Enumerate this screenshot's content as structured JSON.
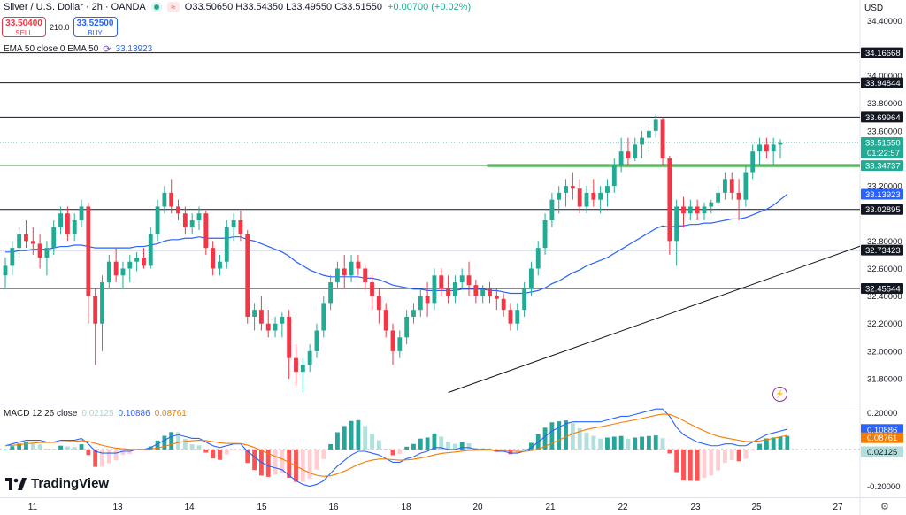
{
  "header": {
    "symbol": "Silver / U.S. Dollar · 2h · OANDA",
    "ohlc": "O33.50650 H33.54350 L33.49550 C33.51550",
    "change": "+0.00700 (+0.02%)",
    "sell_price": "33.50400",
    "sell_label": "SELL",
    "buy_price": "33.52500",
    "buy_label": "BUY",
    "spread": "210.0",
    "ema_label": "EMA 50 close 0 EMA 50",
    "ema_value": "33.13923",
    "macd_label": "MACD 12 26 close",
    "macd_hist": "0.02125",
    "macd_line": "0.10886",
    "macd_signal": "0.08761",
    "currency": "USD",
    "logo": "TradingView",
    "colors": {
      "up": "#22ab94",
      "down": "#f23645",
      "ema": "#2962ff",
      "signal": "#f57c00",
      "hist_up": "#26a69a",
      "hist_up_light": "#b2dfdb",
      "hist_down": "#ff5252",
      "hist_down_light": "#ffcdd2",
      "zone": "#4caf50"
    }
  },
  "chart_data": [
    {
      "type": "candlestick",
      "x_tick_labels": [
        "11",
        "13",
        "14",
        "15",
        "16",
        "18",
        "20",
        "21",
        "22",
        "23",
        "25",
        "27"
      ],
      "y_tick_labels": [
        "34.40000",
        "34.00000",
        "33.80000",
        "33.60000",
        "33.20000",
        "32.80000",
        "32.60000",
        "32.40000",
        "32.20000",
        "32.00000",
        "31.80000"
      ],
      "ylim": [
        31.62,
        34.55
      ],
      "price_badges": [
        {
          "label": "34.16668",
          "value": 34.16668,
          "style": "dark"
        },
        {
          "label": "33.94844",
          "value": 33.94844,
          "style": "dark"
        },
        {
          "label": "33.69964",
          "value": 33.69964,
          "style": "dark"
        },
        {
          "label": "33.51550",
          "value": 33.5155,
          "style": "green",
          "sub": "01:22:57"
        },
        {
          "label": "33.34737",
          "value": 33.34737,
          "style": "green"
        },
        {
          "label": "33.13923",
          "value": 33.13923,
          "style": "blue"
        },
        {
          "label": "33.02895",
          "value": 33.02895,
          "style": "dark"
        },
        {
          "label": "32.73423",
          "value": 32.73423,
          "style": "dark"
        },
        {
          "label": "32.45544",
          "value": 32.45544,
          "style": "dark"
        }
      ],
      "horizontal_levels": [
        34.16668,
        33.94844,
        33.69964,
        33.02895,
        32.73423,
        32.45544
      ],
      "support_zone": {
        "value": 33.34737,
        "from_bar": 70
      },
      "current_price": 33.5155,
      "trendline": {
        "from": [
          64,
          31.7
        ],
        "to": [
          157,
          33.36
        ]
      },
      "ohlc": [
        [
          32.55,
          32.68,
          32.45,
          32.62
        ],
        [
          32.62,
          32.8,
          32.55,
          32.75
        ],
        [
          32.75,
          32.9,
          32.68,
          32.85
        ],
        [
          32.85,
          32.95,
          32.75,
          32.8
        ],
        [
          32.8,
          32.9,
          32.7,
          32.78
        ],
        [
          32.78,
          32.85,
          32.6,
          32.68
        ],
        [
          32.68,
          32.8,
          32.55,
          32.75
        ],
        [
          32.75,
          32.95,
          32.7,
          32.9
        ],
        [
          32.9,
          33.05,
          32.85,
          33.0
        ],
        [
          33.0,
          33.05,
          32.8,
          32.85
        ],
        [
          32.85,
          33.0,
          32.8,
          32.95
        ],
        [
          32.95,
          33.1,
          32.9,
          33.05
        ],
        [
          33.05,
          33.08,
          32.2,
          32.4
        ],
        [
          32.4,
          32.45,
          31.9,
          32.2
        ],
        [
          32.2,
          32.55,
          32.0,
          32.5
        ],
        [
          32.5,
          32.7,
          32.45,
          32.65
        ],
        [
          32.65,
          32.75,
          32.5,
          32.55
        ],
        [
          32.55,
          32.65,
          32.45,
          32.6
        ],
        [
          32.6,
          32.7,
          32.5,
          32.65
        ],
        [
          32.65,
          32.72,
          32.58,
          32.68
        ],
        [
          32.68,
          32.75,
          32.6,
          32.62
        ],
        [
          32.62,
          32.9,
          32.6,
          32.85
        ],
        [
          32.85,
          33.1,
          32.8,
          33.05
        ],
        [
          33.05,
          33.2,
          33.0,
          33.15
        ],
        [
          33.15,
          33.25,
          33.0,
          33.05
        ],
        [
          33.05,
          33.1,
          32.95,
          33.0
        ],
        [
          33.0,
          33.05,
          32.85,
          32.9
        ],
        [
          32.9,
          33.0,
          32.85,
          32.95
        ],
        [
          32.95,
          33.05,
          32.88,
          33.0
        ],
        [
          33.0,
          33.02,
          32.7,
          32.75
        ],
        [
          32.75,
          32.8,
          32.55,
          32.6
        ],
        [
          32.6,
          32.7,
          32.55,
          32.65
        ],
        [
          32.65,
          32.95,
          32.6,
          32.9
        ],
        [
          32.9,
          33.0,
          32.8,
          32.95
        ],
        [
          32.95,
          33.02,
          32.8,
          32.85
        ],
        [
          32.85,
          32.88,
          32.2,
          32.25
        ],
        [
          32.25,
          32.35,
          32.15,
          32.3
        ],
        [
          32.3,
          32.4,
          32.15,
          32.2
        ],
        [
          32.2,
          32.3,
          32.1,
          32.15
        ],
        [
          32.15,
          32.25,
          32.1,
          32.2
        ],
        [
          32.2,
          32.28,
          32.1,
          32.25
        ],
        [
          32.25,
          32.3,
          31.8,
          31.95
        ],
        [
          31.95,
          32.05,
          31.75,
          31.85
        ],
        [
          31.85,
          31.95,
          31.7,
          31.9
        ],
        [
          31.9,
          32.05,
          31.85,
          32.0
        ],
        [
          32.0,
          32.2,
          31.95,
          32.15
        ],
        [
          32.15,
          32.4,
          32.1,
          32.35
        ],
        [
          32.35,
          32.55,
          32.3,
          32.5
        ],
        [
          32.5,
          32.65,
          32.45,
          32.6
        ],
        [
          32.6,
          32.7,
          32.45,
          32.55
        ],
        [
          32.55,
          32.7,
          32.5,
          32.65
        ],
        [
          32.65,
          32.7,
          32.55,
          32.6
        ],
        [
          32.6,
          32.62,
          32.45,
          32.5
        ],
        [
          32.5,
          32.55,
          32.3,
          32.4
        ],
        [
          32.4,
          32.45,
          32.2,
          32.3
        ],
        [
          32.3,
          32.35,
          32.1,
          32.15
        ],
        [
          32.15,
          32.2,
          31.9,
          32.0
        ],
        [
          32.0,
          32.15,
          31.95,
          32.1
        ],
        [
          32.1,
          32.3,
          32.05,
          32.25
        ],
        [
          32.25,
          32.35,
          32.2,
          32.3
        ],
        [
          32.3,
          32.45,
          32.25,
          32.4
        ],
        [
          32.4,
          32.5,
          32.25,
          32.35
        ],
        [
          32.35,
          32.6,
          32.3,
          32.55
        ],
        [
          32.55,
          32.6,
          32.4,
          32.45
        ],
        [
          32.45,
          32.55,
          32.35,
          32.4
        ],
        [
          32.4,
          32.55,
          32.35,
          32.5
        ],
        [
          32.5,
          32.6,
          32.45,
          32.55
        ],
        [
          32.55,
          32.65,
          32.4,
          32.48
        ],
        [
          32.48,
          32.52,
          32.35,
          32.4
        ],
        [
          32.4,
          32.48,
          32.35,
          32.45
        ],
        [
          32.45,
          32.5,
          32.35,
          32.4
        ],
        [
          32.4,
          32.45,
          32.3,
          32.38
        ],
        [
          32.38,
          32.42,
          32.25,
          32.3
        ],
        [
          32.3,
          32.35,
          32.15,
          32.2
        ],
        [
          32.2,
          32.35,
          32.15,
          32.3
        ],
        [
          32.3,
          32.5,
          32.25,
          32.45
        ],
        [
          32.45,
          32.65,
          32.4,
          32.6
        ],
        [
          32.6,
          32.8,
          32.55,
          32.75
        ],
        [
          32.75,
          33.0,
          32.7,
          32.95
        ],
        [
          32.95,
          33.15,
          32.9,
          33.1
        ],
        [
          33.1,
          33.2,
          33.0,
          33.15
        ],
        [
          33.15,
          33.25,
          33.05,
          33.2
        ],
        [
          33.2,
          33.3,
          33.1,
          33.18
        ],
        [
          33.18,
          33.25,
          33.0,
          33.05
        ],
        [
          33.05,
          33.2,
          33.0,
          33.15
        ],
        [
          33.15,
          33.25,
          33.05,
          33.1
        ],
        [
          33.1,
          33.2,
          33.0,
          33.15
        ],
        [
          33.15,
          33.25,
          33.05,
          33.2
        ],
        [
          33.2,
          33.4,
          33.15,
          33.35
        ],
        [
          33.35,
          33.55,
          33.3,
          33.45
        ],
        [
          33.45,
          33.55,
          33.35,
          33.4
        ],
        [
          33.4,
          33.55,
          33.38,
          33.5
        ],
        [
          33.5,
          33.6,
          33.4,
          33.55
        ],
        [
          33.55,
          33.65,
          33.45,
          33.6
        ],
        [
          33.6,
          33.72,
          33.55,
          33.68
        ],
        [
          33.68,
          33.7,
          33.35,
          33.4
        ],
        [
          33.4,
          33.42,
          32.7,
          32.8
        ],
        [
          32.8,
          33.1,
          32.62,
          33.05
        ],
        [
          33.05,
          33.12,
          32.9,
          33.0
        ],
        [
          33.0,
          33.1,
          32.95,
          33.05
        ],
        [
          33.05,
          33.1,
          32.95,
          33.0
        ],
        [
          33.0,
          33.08,
          32.95,
          33.05
        ],
        [
          33.05,
          33.1,
          33.0,
          33.08
        ],
        [
          33.08,
          33.2,
          33.05,
          33.15
        ],
        [
          33.15,
          33.3,
          33.1,
          33.25
        ],
        [
          33.25,
          33.3,
          33.1,
          33.15
        ],
        [
          33.15,
          33.25,
          32.95,
          33.1
        ],
        [
          33.1,
          33.35,
          33.05,
          33.3
        ],
        [
          33.3,
          33.5,
          33.25,
          33.45
        ],
        [
          33.45,
          33.55,
          33.35,
          33.5
        ],
        [
          33.5,
          33.55,
          33.4,
          33.45
        ],
        [
          33.45,
          33.55,
          33.35,
          33.5
        ],
        [
          33.5,
          33.54,
          33.4,
          33.51
        ]
      ],
      "ema50": [
        32.72,
        32.72,
        32.73,
        32.73,
        32.74,
        32.74,
        32.74,
        32.75,
        32.76,
        32.76,
        32.77,
        32.77,
        32.76,
        32.75,
        32.75,
        32.75,
        32.75,
        32.75,
        32.75,
        32.76,
        32.76,
        32.77,
        32.78,
        32.8,
        32.81,
        32.81,
        32.82,
        32.82,
        32.83,
        32.82,
        32.82,
        32.82,
        32.82,
        32.83,
        32.83,
        32.81,
        32.8,
        32.78,
        32.76,
        32.74,
        32.72,
        32.69,
        32.65,
        32.62,
        32.59,
        32.57,
        32.55,
        32.54,
        32.54,
        32.54,
        32.54,
        32.54,
        32.53,
        32.53,
        32.52,
        32.5,
        32.48,
        32.47,
        32.46,
        32.45,
        32.45,
        32.44,
        32.44,
        32.44,
        32.44,
        32.44,
        32.45,
        32.45,
        32.45,
        32.45,
        32.44,
        32.44,
        32.43,
        32.42,
        32.42,
        32.42,
        32.43,
        32.44,
        32.46,
        32.49,
        32.51,
        32.54,
        32.57,
        32.59,
        32.62,
        32.64,
        32.66,
        32.68,
        32.71,
        32.74,
        32.77,
        32.8,
        32.83,
        32.86,
        32.89,
        32.91,
        32.9,
        32.91,
        32.91,
        32.92,
        32.92,
        32.93,
        32.93,
        32.94,
        32.95,
        32.96,
        32.96,
        32.97,
        32.99,
        33.01,
        33.03,
        33.06,
        33.1,
        33.14
      ]
    },
    {
      "type": "macd",
      "y_tick_labels": [
        "0.20000",
        "-0.20000"
      ],
      "ylim": [
        -0.26,
        0.24
      ],
      "macd": [
        0.02,
        0.03,
        0.04,
        0.05,
        0.05,
        0.05,
        0.04,
        0.04,
        0.05,
        0.05,
        0.05,
        0.06,
        0.03,
        -0.01,
        -0.02,
        -0.02,
        -0.02,
        -0.01,
        -0.01,
        0.0,
        0.0,
        0.01,
        0.03,
        0.05,
        0.07,
        0.08,
        0.07,
        0.06,
        0.06,
        0.04,
        0.02,
        0.01,
        0.02,
        0.03,
        0.03,
        -0.01,
        -0.04,
        -0.07,
        -0.09,
        -0.1,
        -0.11,
        -0.14,
        -0.17,
        -0.19,
        -0.2,
        -0.19,
        -0.17,
        -0.13,
        -0.09,
        -0.06,
        -0.03,
        -0.01,
        -0.01,
        -0.02,
        -0.03,
        -0.05,
        -0.07,
        -0.07,
        -0.05,
        -0.04,
        -0.02,
        -0.01,
        0.01,
        0.01,
        0.0,
        0.0,
        0.01,
        0.01,
        0.0,
        0.0,
        0.0,
        -0.01,
        -0.01,
        -0.02,
        -0.02,
        -0.01,
        0.01,
        0.04,
        0.07,
        0.1,
        0.12,
        0.14,
        0.15,
        0.15,
        0.15,
        0.15,
        0.15,
        0.16,
        0.17,
        0.18,
        0.18,
        0.19,
        0.2,
        0.21,
        0.22,
        0.22,
        0.18,
        0.12,
        0.08,
        0.06,
        0.04,
        0.03,
        0.02,
        0.02,
        0.03,
        0.03,
        0.02,
        0.02,
        0.04,
        0.06,
        0.08,
        0.09,
        0.1,
        0.11
      ]
    }
  ]
}
